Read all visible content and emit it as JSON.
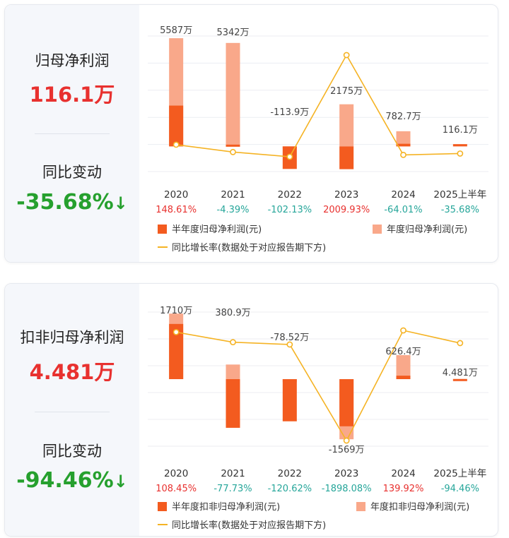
{
  "panels": [
    {
      "metric_label": "归母净利润",
      "metric_value": "116.1万",
      "change_label": "同比变动",
      "change_value": "-35.68%",
      "change_arrow": "↓",
      "colors": {
        "half": "#f35b1f",
        "full": "#f9a88a",
        "line": "#f5b324",
        "pos": "#e8312f",
        "neg": "#26a69a",
        "value_red": "#e8312f",
        "value_green": "#26a02e"
      }
    },
    {
      "metric_label": "扣非归母净利润",
      "metric_value": "4.481万",
      "change_label": "同比变动",
      "change_value": "-94.46%",
      "change_arrow": "↓",
      "colors": {
        "half": "#f35b1f",
        "full": "#f9a88a",
        "line": "#f5b324",
        "pos": "#e8312f",
        "neg": "#26a69a",
        "value_red": "#e8312f",
        "value_green": "#26a02e"
      }
    }
  ],
  "chart_data": [
    {
      "type": "bar",
      "categories": [
        "2020",
        "2021",
        "2022",
        "2023",
        "2024",
        "2025上半年"
      ],
      "series": [
        {
          "name": "半年度归母净利润(元)",
          "values": [
            2107,
            91,
            -1165,
            -1177,
            135,
            116.1
          ]
        },
        {
          "name": "年度归母净利润(元)",
          "values": [
            5587,
            5342,
            -113.9,
            2175,
            782.7,
            null
          ]
        },
        {
          "name": "同比增长率(数据处于对应报告期下方)",
          "values": [
            148.61,
            -4.39,
            -102.13,
            2009.93,
            -64.01,
            -35.68
          ]
        }
      ],
      "value_labels": [
        "5587万",
        "5342万",
        "-113.9万",
        "2175万",
        "782.7万",
        "116.1万"
      ],
      "growth_labels": [
        "148.61%",
        "-4.39%",
        "-102.13%",
        "2009.93%",
        "-64.01%",
        "-35.68%"
      ],
      "unit": "万",
      "ylim": [
        -1300,
        5700
      ]
    },
    {
      "type": "bar",
      "categories": [
        "2020",
        "2021",
        "2022",
        "2023",
        "2024",
        "2025上半年"
      ],
      "series": [
        {
          "name": "半年度扣非归母净利润(元)",
          "values": [
            1440,
            -1270,
            -1100,
            -1230,
            90,
            4.481
          ]
        },
        {
          "name": "年度扣非归母净利润(元)",
          "values": [
            1710,
            380.9,
            -78.52,
            -1569,
            626.4,
            null
          ]
        },
        {
          "name": "同比增长率(数据处于对应报告期下方)",
          "values": [
            108.45,
            -77.73,
            -120.62,
            -1898.08,
            139.92,
            -94.46
          ]
        }
      ],
      "value_labels": [
        "1710万",
        "380.9万",
        "-78.52万",
        "-1569万",
        "626.4万",
        "4.481万"
      ],
      "growth_labels": [
        "108.45%",
        "-77.73%",
        "-120.62%",
        "-1898.08%",
        "139.92%",
        "-94.46%"
      ],
      "unit": "万",
      "ylim": [
        -1750,
        1750
      ]
    }
  ]
}
